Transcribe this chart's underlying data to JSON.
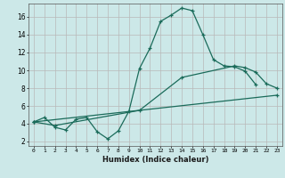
{
  "title": "",
  "xlabel": "Humidex (Indice chaleur)",
  "bg_color": "#cce8e8",
  "grid_color": "#b8b8b8",
  "line_color": "#1a6b5a",
  "xlim": [
    -0.5,
    23.5
  ],
  "ylim": [
    1.5,
    17.5
  ],
  "yticks": [
    2,
    4,
    6,
    8,
    10,
    12,
    14,
    16
  ],
  "xticks": [
    0,
    1,
    2,
    3,
    4,
    5,
    6,
    7,
    8,
    9,
    10,
    11,
    12,
    13,
    14,
    15,
    16,
    17,
    18,
    19,
    20,
    21,
    22,
    23
  ],
  "series1_x": [
    0,
    1,
    2,
    3,
    4,
    5,
    6,
    7,
    8,
    9,
    10,
    11,
    12,
    13,
    14,
    15,
    16,
    17,
    18,
    19,
    20,
    21
  ],
  "series1_y": [
    4.2,
    4.7,
    3.6,
    3.3,
    4.5,
    4.7,
    3.1,
    2.3,
    3.2,
    5.4,
    10.2,
    12.5,
    15.5,
    16.2,
    17.0,
    16.7,
    14.0,
    11.2,
    10.5,
    10.4,
    9.9,
    8.4
  ],
  "series2_x": [
    0,
    2,
    10,
    14,
    19,
    20,
    21,
    22,
    23
  ],
  "series2_y": [
    4.2,
    3.8,
    5.5,
    9.2,
    10.5,
    10.3,
    9.8,
    8.5,
    8.0
  ],
  "series3_x": [
    0,
    23
  ],
  "series3_y": [
    4.2,
    7.2
  ]
}
